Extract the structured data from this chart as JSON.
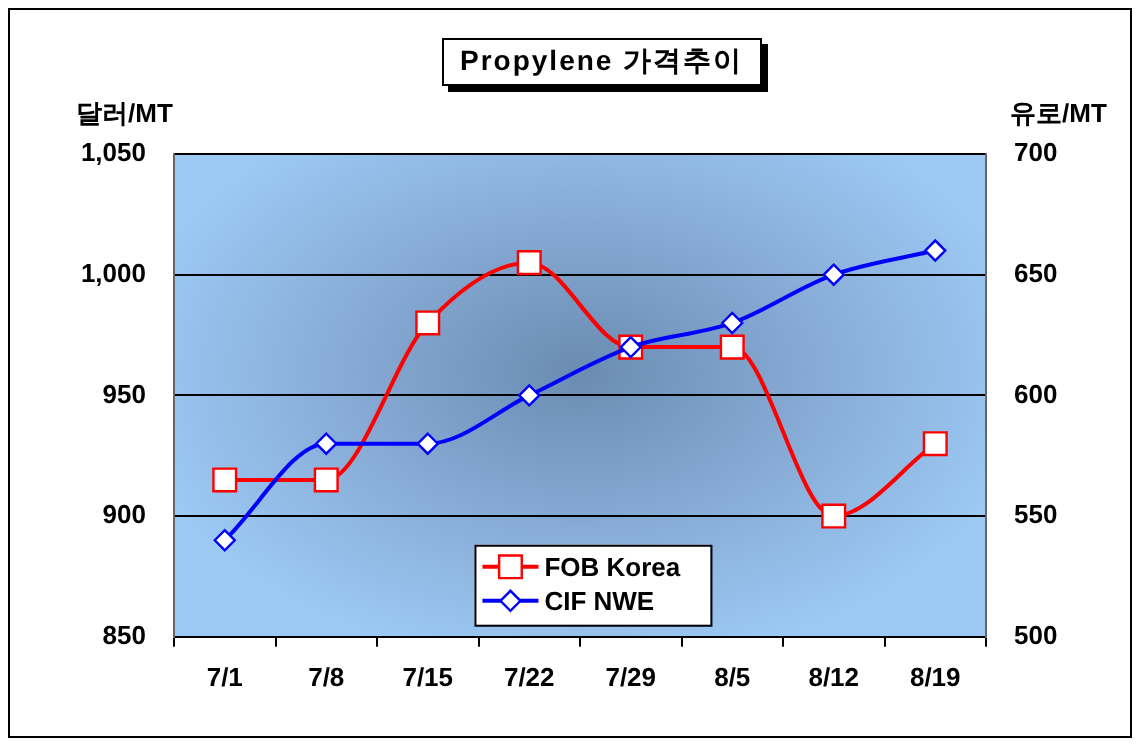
{
  "chart_data": {
    "type": "line",
    "title": "Propylene 가격추이",
    "ylabel": "달러/MT",
    "y2label": "유로/MT",
    "categories": [
      "7/1",
      "7/8",
      "7/15",
      "7/22",
      "7/29",
      "8/5",
      "8/12",
      "8/19"
    ],
    "series": [
      {
        "name": "FOB Korea",
        "color": "#ff0000",
        "marker": "square",
        "values": [
          915,
          915,
          980,
          1005,
          970,
          970,
          900,
          930
        ]
      },
      {
        "name": "CIF NWE",
        "color": "#0000ff",
        "marker": "diamond",
        "axis": "y2",
        "values": [
          540,
          580,
          580,
          600,
          620,
          630,
          650,
          660
        ]
      }
    ],
    "ylim": [
      850,
      1050
    ],
    "yticks": [
      850,
      900,
      950,
      {
        "value": 1000,
        "label": "1,000"
      },
      {
        "value": 1050,
        "label": "1,050"
      }
    ],
    "y2lim": [
      500,
      700
    ],
    "y2ticks": [
      500,
      550,
      600,
      650,
      700
    ],
    "grid": "y",
    "legend": "bottom"
  }
}
